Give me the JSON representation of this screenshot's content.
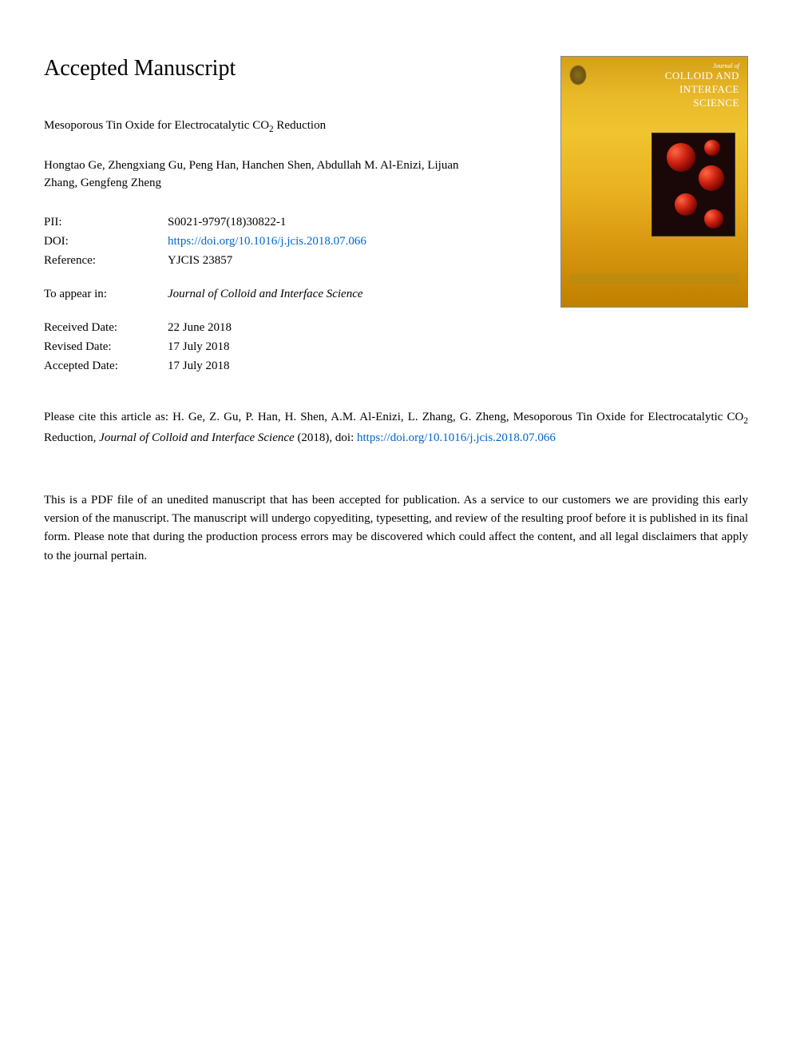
{
  "heading": "Accepted Manuscript",
  "article_title_pre": "Mesoporous Tin Oxide for Electrocatalytic CO",
  "article_title_sub": "2",
  "article_title_post": " Reduction",
  "authors": "Hongtao Ge, Zhengxiang Gu, Peng Han, Hanchen Shen, Abdullah M. Al-Enizi, Lijuan Zhang, Gengfeng Zheng",
  "meta": {
    "pii_label": "PII:",
    "pii_value": "S0021-9797(18)30822-1",
    "doi_label": "DOI:",
    "doi_url": "https://doi.org/10.1016/j.jcis.2018.07.066",
    "reference_label": "Reference:",
    "reference_value": "YJCIS 23857",
    "appear_label": "To appear in:",
    "appear_value": "Journal of Colloid and Interface Science",
    "received_label": "Received Date:",
    "received_value": "22 June 2018",
    "revised_label": "Revised Date:",
    "revised_value": "17 July 2018",
    "accepted_label": "Accepted Date:",
    "accepted_value": "17 July 2018"
  },
  "citation": {
    "prefix": "Please cite this article as: H. Ge, Z. Gu, P. Han, H. Shen, A.M. Al-Enizi, L. Zhang, G. Zheng, Mesoporous Tin Oxide for Electrocatalytic CO",
    "sub": "2",
    "mid": " Reduction, ",
    "journal": "Journal of Colloid and Interface Science",
    "year": " (2018), doi: ",
    "doi_text": "https://doi.org/10.1016/j.jcis.2018.07.066",
    "doi_href": "https://doi.org/10.1016/j.jcis.2018.07.066"
  },
  "disclaimer": "This is a PDF file of an unedited manuscript that has been accepted for publication. As a service to our customers we are providing this early version of the manuscript. The manuscript will undergo copyediting, typesetting, and review of the resulting proof before it is published in its final form. Please note that during the production process errors may be discovered which could affect the content, and all legal disclaimers that apply to the journal pertain.",
  "cover": {
    "journal_of": "Journal of",
    "line1": "COLLOID AND",
    "line2": "INTERFACE",
    "line3": "SCIENCE",
    "colors": {
      "gradient_top": "#d4a017",
      "gradient_bottom": "#c08000",
      "inset_bg": "#1a0808",
      "sphere_highlight": "#ff6644"
    }
  },
  "colors": {
    "text": "#000000",
    "link": "#0066cc",
    "background": "#ffffff"
  },
  "fonts": {
    "body_family": "Georgia, Times New Roman, serif",
    "heading_size_pt": 21,
    "body_size_pt": 11
  }
}
